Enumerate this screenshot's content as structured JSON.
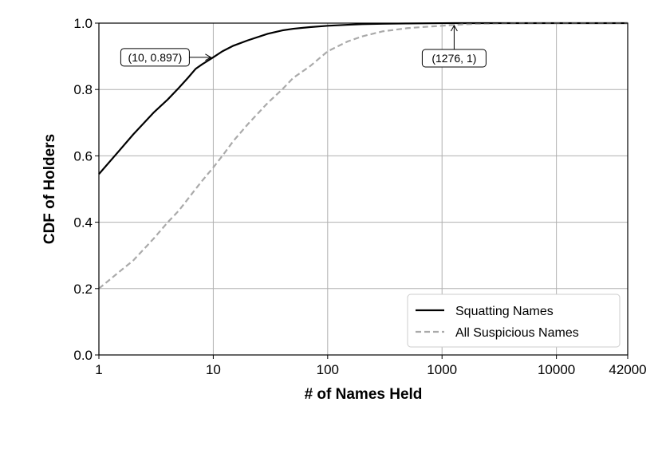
{
  "chart_data": {
    "type": "line",
    "xlabel": "# of Names Held",
    "ylabel": "CDF of Holders",
    "x_scale": "log",
    "xlim": [
      1,
      42000
    ],
    "ylim": [
      0,
      1
    ],
    "x_ticks": [
      1,
      10,
      100,
      1000,
      10000,
      42000
    ],
    "x_tick_labels": [
      "1",
      "10",
      "100",
      "1000",
      "10000",
      "42000"
    ],
    "y_ticks": [
      0,
      0.2,
      0.4,
      0.6,
      0.8,
      1.0
    ],
    "y_tick_labels": [
      "0.0",
      "0.2",
      "0.4",
      "0.6",
      "0.8",
      "1.0"
    ],
    "grid": true,
    "legend_position": "bottom-right",
    "series": [
      {
        "name": "Squatting Names",
        "color": "#000000",
        "style": "solid",
        "x": [
          1,
          1.5,
          2,
          3,
          4,
          5,
          6,
          7,
          8,
          10,
          12,
          15,
          20,
          30,
          40,
          50,
          70,
          100,
          150,
          200,
          300,
          500,
          800,
          1000,
          1276,
          42000
        ],
        "y": [
          0.545,
          0.615,
          0.665,
          0.73,
          0.77,
          0.805,
          0.835,
          0.862,
          0.876,
          0.897,
          0.915,
          0.932,
          0.948,
          0.968,
          0.978,
          0.983,
          0.988,
          0.992,
          0.995,
          0.997,
          0.998,
          0.999,
          0.9995,
          0.9998,
          1.0,
          1.0
        ]
      },
      {
        "name": "All Suspicious Names",
        "color": "#aaaaaa",
        "style": "dashed",
        "x": [
          1,
          1.5,
          2,
          3,
          4,
          5,
          6,
          7,
          8,
          10,
          12,
          15,
          20,
          30,
          40,
          50,
          70,
          100,
          150,
          200,
          300,
          500,
          800,
          1000,
          1500,
          2000,
          5000,
          42000
        ],
        "y": [
          0.2,
          0.25,
          0.285,
          0.35,
          0.4,
          0.435,
          0.47,
          0.5,
          0.525,
          0.565,
          0.6,
          0.645,
          0.695,
          0.76,
          0.8,
          0.835,
          0.87,
          0.915,
          0.945,
          0.96,
          0.975,
          0.985,
          0.99,
          0.992,
          0.996,
          0.998,
          1.0,
          1.0
        ]
      }
    ],
    "annotations": [
      {
        "text": "(10, 0.897)",
        "x": 10,
        "y": 0.897
      },
      {
        "text": "(1276, 1)",
        "x": 1276,
        "y": 1.0
      }
    ]
  }
}
